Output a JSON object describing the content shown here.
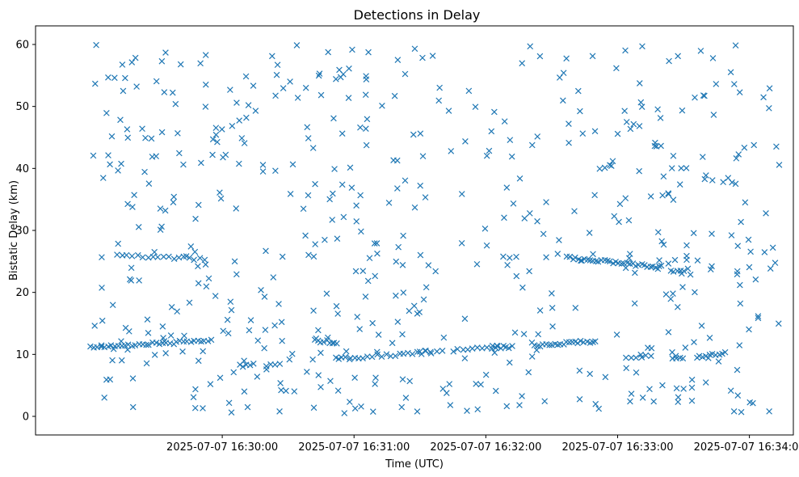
{
  "chart_data": {
    "type": "scatter",
    "title": "Detections in Delay",
    "xlabel": "Time (UTC)",
    "ylabel": "Bistatic Delay (km)",
    "x_unit": "seconds after 2025-07-07 16:29:00",
    "xlim": [
      -25,
      320
    ],
    "ylim": [
      -3,
      63
    ],
    "x_ticks": [
      {
        "value": 60,
        "label": "2025-07-07 16:30:00"
      },
      {
        "value": 120,
        "label": "2025-07-07 16:31:00"
      },
      {
        "value": 180,
        "label": "2025-07-07 16:32:00"
      },
      {
        "value": 240,
        "label": "2025-07-07 16:33:00"
      },
      {
        "value": 300,
        "label": "2025-07-07 16:34:00"
      }
    ],
    "y_ticks": [
      0,
      10,
      20,
      30,
      40,
      50,
      60
    ],
    "grid": false,
    "marker": "x",
    "color": "#1f77b4",
    "tracks": [
      {
        "x_start": 0,
        "x_end": 55,
        "y_start": 11.2,
        "y_end": 12.2,
        "count": 36
      },
      {
        "x_start": 12,
        "x_end": 52,
        "y_start": 26.0,
        "y_end": 25.4,
        "count": 18
      },
      {
        "x_start": 102,
        "x_end": 112,
        "y_start": 12.2,
        "y_end": 12.0,
        "count": 8
      },
      {
        "x_start": 112,
        "x_end": 155,
        "y_start": 9.3,
        "y_end": 10.4,
        "count": 22
      },
      {
        "x_start": 165,
        "x_end": 185,
        "y_start": 10.6,
        "y_end": 11.2,
        "count": 10
      },
      {
        "x_start": 183,
        "x_end": 192,
        "y_start": 11.0,
        "y_end": 11.2,
        "count": 8
      },
      {
        "x_start": 202,
        "x_end": 230,
        "y_start": 11.4,
        "y_end": 12.1,
        "count": 22
      },
      {
        "x_start": 217,
        "x_end": 260,
        "y_start": 25.6,
        "y_end": 24.1,
        "count": 34
      },
      {
        "x_start": 264,
        "x_end": 270,
        "y_start": 23.5,
        "y_end": 23.4,
        "count": 5
      },
      {
        "x_start": 244,
        "x_end": 255,
        "y_start": 9.6,
        "y_end": 9.8,
        "count": 6
      },
      {
        "x_start": 265,
        "x_end": 270,
        "y_start": 9.4,
        "y_end": 9.5,
        "count": 4
      },
      {
        "x_start": 276,
        "x_end": 289,
        "y_start": 9.7,
        "y_end": 10.2,
        "count": 10
      },
      {
        "x_start": 244,
        "x_end": 250,
        "y_start": 47.4,
        "y_end": 47.0,
        "count": 3
      },
      {
        "x_start": 68,
        "x_end": 74,
        "y_start": 8.2,
        "y_end": 8.4,
        "count": 5
      },
      {
        "x_start": 80,
        "x_end": 86,
        "y_start": 8.3,
        "y_end": 8.4,
        "count": 4
      },
      {
        "x_start": 188,
        "x_end": 194,
        "y_start": 25.8,
        "y_end": 25.8,
        "count": 3
      },
      {
        "x_start": 150,
        "x_end": 160,
        "y_start": 10.4,
        "y_end": 10.5,
        "count": 5
      }
    ],
    "clutter": {
      "count": 560,
      "x_range": [
        0,
        315
      ],
      "y_range": [
        0.5,
        60
      ]
    }
  }
}
